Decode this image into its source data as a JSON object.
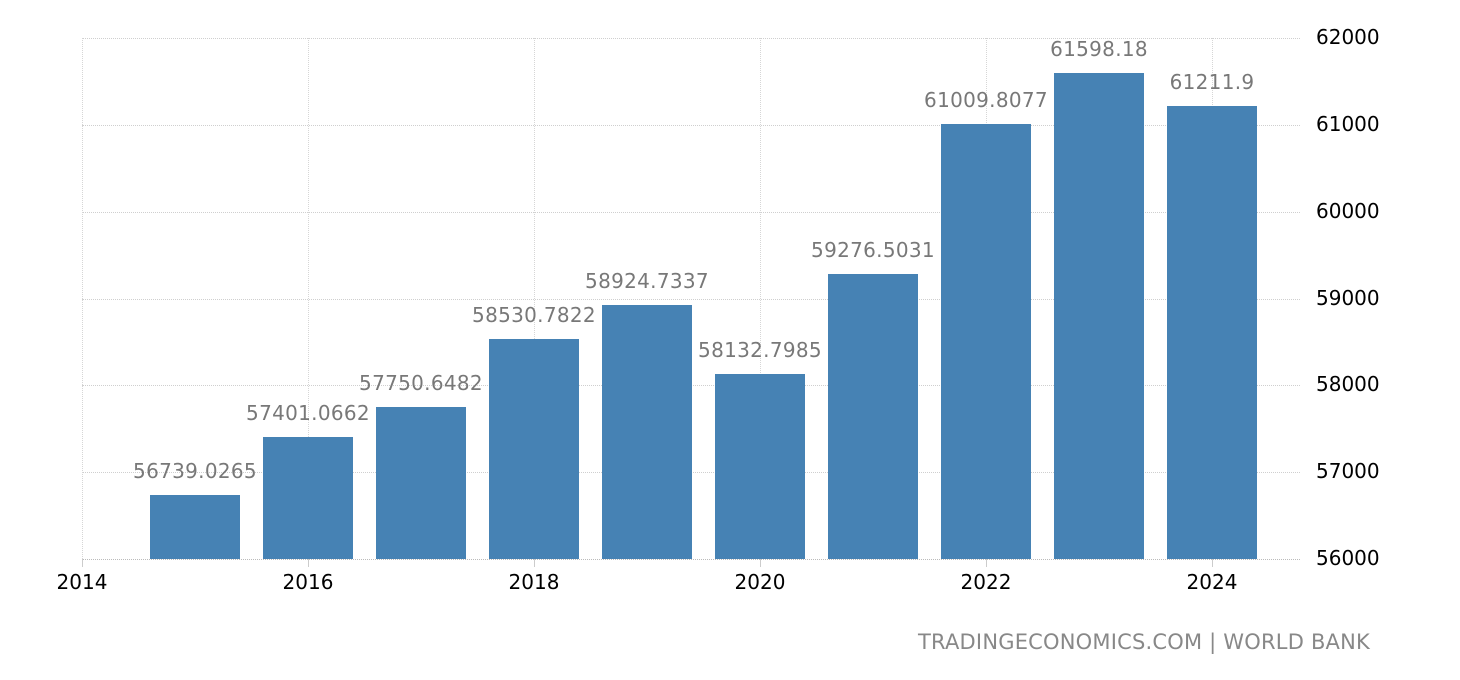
{
  "chart_data": {
    "type": "bar",
    "title": "",
    "xlabel": "",
    "ylabel": "",
    "categories": [
      "2015",
      "2016",
      "2017",
      "2018",
      "2019",
      "2020",
      "2021",
      "2022",
      "2023",
      "2024"
    ],
    "values": [
      56739.0265,
      57401.0662,
      57750.6482,
      58530.7822,
      58924.7337,
      58132.7985,
      59276.5031,
      61009.8077,
      61598.18,
      61211.9
    ],
    "value_labels": [
      "56739.0265",
      "57401.0662",
      "57750.6482",
      "58530.7822",
      "58924.7337",
      "58132.7985",
      "59276.5031",
      "61009.8077",
      "61598.18",
      "61211.9"
    ],
    "ylim": [
      56000,
      62000
    ],
    "y_ticks": [
      "62000",
      "61000",
      "60000",
      "59000",
      "58000",
      "57000",
      "56000"
    ],
    "y_tick_values": [
      62000,
      61000,
      60000,
      59000,
      58000,
      57000,
      56000
    ],
    "x_ticks": [
      "2014",
      "2016",
      "2018",
      "2020",
      "2022",
      "2024"
    ],
    "x_tick_values": [
      2014,
      2016,
      2018,
      2020,
      2022,
      2024
    ],
    "xlim": [
      2014,
      2025.3
    ],
    "y_axis_position": "right",
    "grid": true,
    "legend": null,
    "bar_color": "#4682b4",
    "label_color": "#787878"
  },
  "source": "TRADINGECONOMICS.COM | WORLD BANK"
}
